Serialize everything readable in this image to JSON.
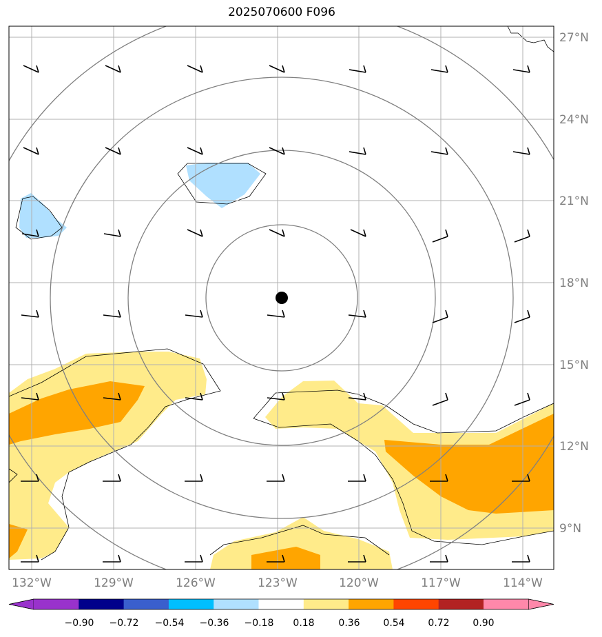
{
  "title": "2025070600 F096",
  "lat_labels": [
    "27°N",
    "24°N",
    "21°N",
    "18°N",
    "15°N",
    "12°N",
    "9°N"
  ],
  "lon_labels": [
    "132°W",
    "129°W",
    "126°W",
    "123°W",
    "120°W",
    "117°W",
    "114°W"
  ],
  "colorbar": {
    "ticks": [
      "−0.90",
      "−0.72",
      "−0.54",
      "−0.36",
      "−0.18",
      "0.18",
      "0.36",
      "0.54",
      "0.72",
      "0.90"
    ],
    "colors": [
      "#9932CC",
      "#00008B",
      "#3A5FCD",
      "#00BFFF",
      "#B0E0FF",
      "#FFFFFF",
      "#FFEB8A",
      "#FFA500",
      "#FF4500",
      "#B22222",
      "#FF88AA"
    ]
  },
  "colors": {
    "range_rings": "#808080",
    "gridlines": "#b0b0b0",
    "center_marker": "#000000"
  },
  "chart_data": {
    "type": "map",
    "title": "2025070600 F096",
    "lon_ticks": [
      -132,
      -129,
      -126,
      -123,
      -120,
      -117,
      -114
    ],
    "lat_ticks": [
      27,
      24,
      21,
      18,
      15,
      12,
      9
    ],
    "center_marker": {
      "lon": -122.8,
      "lat": 17.5
    },
    "range_rings": 4,
    "colorbar_levels": [
      -0.9,
      -0.72,
      -0.54,
      -0.36,
      -0.18,
      0.18,
      0.36,
      0.54,
      0.72,
      0.9
    ]
  }
}
